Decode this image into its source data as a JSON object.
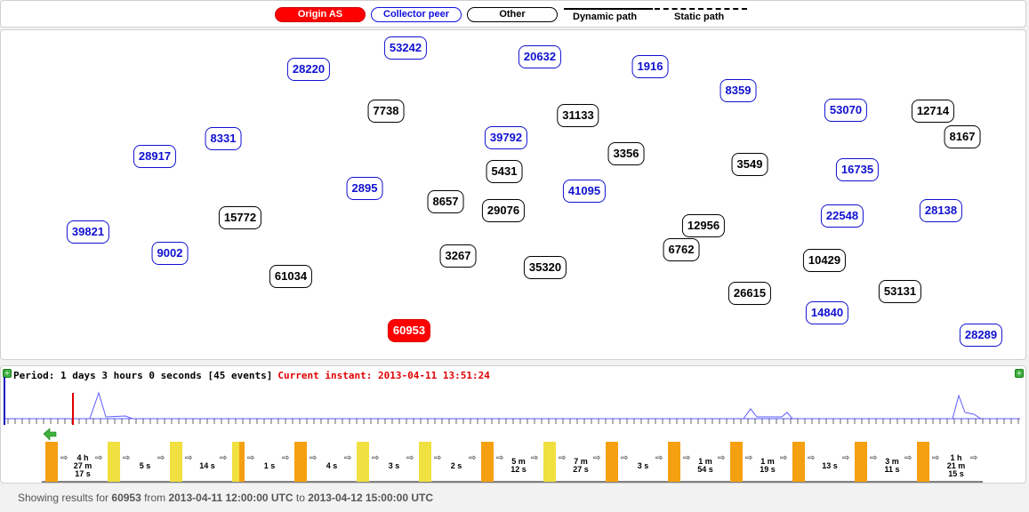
{
  "legend": {
    "origin": "Origin AS",
    "peer": "Collector peer",
    "other": "Other",
    "dynamic": "Dynamic path",
    "static": "Static path"
  },
  "graph": {
    "nodes": [
      {
        "asn": "53242",
        "kind": "peer"
      },
      {
        "asn": "28220",
        "kind": "peer"
      },
      {
        "asn": "20632",
        "kind": "peer"
      },
      {
        "asn": "1916",
        "kind": "peer"
      },
      {
        "asn": "8359",
        "kind": "peer"
      },
      {
        "asn": "53070",
        "kind": "peer"
      },
      {
        "asn": "12714",
        "kind": "other"
      },
      {
        "asn": "8167",
        "kind": "other"
      },
      {
        "asn": "7738",
        "kind": "other"
      },
      {
        "asn": "31133",
        "kind": "other"
      },
      {
        "asn": "8331",
        "kind": "peer"
      },
      {
        "asn": "39792",
        "kind": "peer"
      },
      {
        "asn": "28917",
        "kind": "peer"
      },
      {
        "asn": "3356",
        "kind": "other"
      },
      {
        "asn": "5431",
        "kind": "other"
      },
      {
        "asn": "3549",
        "kind": "other"
      },
      {
        "asn": "16735",
        "kind": "peer"
      },
      {
        "asn": "2895",
        "kind": "peer"
      },
      {
        "asn": "41095",
        "kind": "peer"
      },
      {
        "asn": "8657",
        "kind": "other"
      },
      {
        "asn": "29076",
        "kind": "other"
      },
      {
        "asn": "15772",
        "kind": "other"
      },
      {
        "asn": "22548",
        "kind": "peer"
      },
      {
        "asn": "28138",
        "kind": "peer"
      },
      {
        "asn": "12956",
        "kind": "other"
      },
      {
        "asn": "39821",
        "kind": "peer"
      },
      {
        "asn": "6762",
        "kind": "other"
      },
      {
        "asn": "9002",
        "kind": "peer"
      },
      {
        "asn": "3267",
        "kind": "other"
      },
      {
        "asn": "10429",
        "kind": "other"
      },
      {
        "asn": "35320",
        "kind": "other"
      },
      {
        "asn": "61034",
        "kind": "other"
      },
      {
        "asn": "53131",
        "kind": "other"
      },
      {
        "asn": "26615",
        "kind": "other"
      },
      {
        "asn": "14840",
        "kind": "peer"
      },
      {
        "asn": "28289",
        "kind": "peer"
      },
      {
        "asn": "60953",
        "kind": "origin"
      }
    ]
  },
  "timeline": {
    "period_text": "Period: 1 days 3 hours 0 seconds [45 events]",
    "current_text": "Current instant: 2013-04-11 13:51:24",
    "segments": [
      {
        "label": "4 h\n27 m\n17 s",
        "color": "orange"
      },
      {
        "label": "5 s",
        "color": "yellow"
      },
      {
        "label": "14 s",
        "color": "yellow"
      },
      {
        "label": "1 s",
        "color": "yellow"
      },
      {
        "label": "4 s",
        "color": "orange"
      },
      {
        "label": "3 s",
        "color": "yellow"
      },
      {
        "label": "2 s",
        "color": "yellow"
      },
      {
        "label": "5 m\n12 s",
        "color": "orange"
      },
      {
        "label": "7 m\n27 s",
        "color": "yellow"
      },
      {
        "label": "3 s",
        "color": "orange"
      },
      {
        "label": "1 m\n54 s",
        "color": "orange"
      },
      {
        "label": "1 m\n19 s",
        "color": "orange"
      },
      {
        "label": "13 s",
        "color": "orange"
      },
      {
        "label": "3 m\n11 s",
        "color": "orange"
      },
      {
        "label": "1 h\n21 m\n15 s",
        "color": "orange"
      }
    ],
    "colors": {
      "orange": "#f5a010",
      "yellow": "#f0e040",
      "current": "#e00000",
      "start": "#1010c0"
    }
  },
  "footer": {
    "prefix": "Showing results for",
    "asn": "60953",
    "from_word": "from",
    "from": "2013-04-11 12:00:00 UTC",
    "to_word": "to",
    "to": "2013-04-12 15:00:00 UTC"
  }
}
